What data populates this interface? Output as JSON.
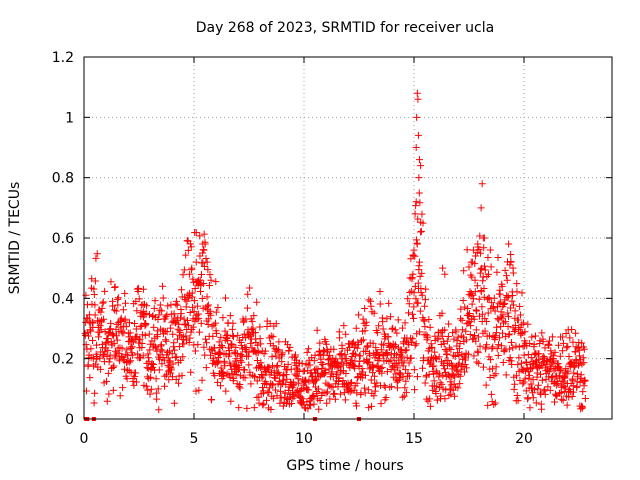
{
  "chart_data": {
    "type": "scatter",
    "title": "Day 268 of 2023, SRMTID for receiver ucla",
    "xlabel": "GPS time / hours",
    "ylabel": "SRMTID / TECUs",
    "xlim": [
      0,
      24
    ],
    "ylim": [
      0,
      1.2
    ],
    "grid": true,
    "marker": "plus",
    "color": "#ff0000",
    "xticks": [
      {
        "value": 0,
        "label": "0"
      },
      {
        "value": 5,
        "label": "5"
      },
      {
        "value": 10,
        "label": "10"
      },
      {
        "value": 15,
        "label": "15"
      },
      {
        "value": 20,
        "label": "20"
      }
    ],
    "yticks": [
      {
        "value": 0,
        "label": "0"
      },
      {
        "value": 0.2,
        "label": "0.2"
      },
      {
        "value": 0.4,
        "label": "0.4"
      },
      {
        "value": 0.6,
        "label": "0.6"
      },
      {
        "value": 0.8,
        "label": "0.8"
      },
      {
        "value": 1.0,
        "label": "1"
      },
      {
        "value": 1.2,
        "label": "1.2"
      }
    ],
    "zero_markers_x": [
      0.1,
      0.15,
      0.45,
      10.5,
      12.5
    ],
    "profile": [
      [
        0.05,
        0.24
      ],
      [
        0.3,
        0.27
      ],
      [
        0.6,
        0.3
      ],
      [
        0.9,
        0.25
      ],
      [
        1.2,
        0.28
      ],
      [
        1.4,
        0.32
      ],
      [
        1.7,
        0.25
      ],
      [
        2.0,
        0.22
      ],
      [
        2.3,
        0.24
      ],
      [
        2.6,
        0.27
      ],
      [
        3.0,
        0.2
      ],
      [
        3.3,
        0.25
      ],
      [
        3.6,
        0.28
      ],
      [
        3.9,
        0.22
      ],
      [
        4.2,
        0.28
      ],
      [
        4.5,
        0.36
      ],
      [
        4.8,
        0.4
      ],
      [
        5.0,
        0.36
      ],
      [
        5.3,
        0.44
      ],
      [
        5.5,
        0.4
      ],
      [
        5.8,
        0.28
      ],
      [
        6.2,
        0.22
      ],
      [
        6.6,
        0.2
      ],
      [
        7.0,
        0.2
      ],
      [
        7.5,
        0.24
      ],
      [
        8.0,
        0.2
      ],
      [
        8.5,
        0.18
      ],
      [
        9.0,
        0.16
      ],
      [
        9.5,
        0.14
      ],
      [
        10.0,
        0.1
      ],
      [
        10.3,
        0.12
      ],
      [
        10.6,
        0.16
      ],
      [
        11.0,
        0.16
      ],
      [
        11.5,
        0.15
      ],
      [
        12.0,
        0.16
      ],
      [
        12.5,
        0.17
      ],
      [
        13.0,
        0.22
      ],
      [
        13.5,
        0.22
      ],
      [
        14.0,
        0.2
      ],
      [
        14.5,
        0.18
      ],
      [
        14.8,
        0.25
      ],
      [
        15.0,
        0.42
      ],
      [
        15.2,
        0.55
      ],
      [
        15.4,
        0.4
      ],
      [
        15.6,
        0.22
      ],
      [
        16.0,
        0.18
      ],
      [
        16.4,
        0.2
      ],
      [
        16.8,
        0.16
      ],
      [
        17.0,
        0.2
      ],
      [
        17.3,
        0.28
      ],
      [
        17.6,
        0.35
      ],
      [
        18.0,
        0.4
      ],
      [
        18.3,
        0.36
      ],
      [
        18.6,
        0.28
      ],
      [
        19.0,
        0.32
      ],
      [
        19.4,
        0.34
      ],
      [
        19.7,
        0.26
      ],
      [
        20.0,
        0.2
      ],
      [
        20.4,
        0.17
      ],
      [
        20.8,
        0.16
      ],
      [
        21.2,
        0.17
      ],
      [
        21.6,
        0.16
      ],
      [
        22.0,
        0.18
      ],
      [
        22.4,
        0.18
      ],
      [
        22.8,
        0.15
      ]
    ],
    "spikes": [
      {
        "x": 15.15,
        "y": 1.08
      },
      {
        "x": 15.18,
        "y": 1.06
      },
      {
        "x": 15.12,
        "y": 1.0
      },
      {
        "x": 15.2,
        "y": 0.94
      },
      {
        "x": 15.1,
        "y": 0.9
      },
      {
        "x": 15.25,
        "y": 0.86
      },
      {
        "x": 15.3,
        "y": 0.84
      },
      {
        "x": 15.22,
        "y": 0.8
      },
      {
        "x": 15.05,
        "y": 0.68
      },
      {
        "x": 15.1,
        "y": 0.72
      },
      {
        "x": 15.3,
        "y": 0.62
      },
      {
        "x": 15.15,
        "y": 0.58
      },
      {
        "x": 15.0,
        "y": 0.56
      },
      {
        "x": 15.25,
        "y": 0.52
      },
      {
        "x": 14.95,
        "y": 0.48
      },
      {
        "x": 18.1,
        "y": 0.78
      },
      {
        "x": 18.05,
        "y": 0.7
      },
      {
        "x": 18.15,
        "y": 0.6
      },
      {
        "x": 17.9,
        "y": 0.58
      },
      {
        "x": 18.2,
        "y": 0.6
      },
      {
        "x": 17.7,
        "y": 0.56
      },
      {
        "x": 17.6,
        "y": 0.52
      },
      {
        "x": 19.3,
        "y": 0.58
      },
      {
        "x": 19.4,
        "y": 0.52
      },
      {
        "x": 19.5,
        "y": 0.5
      },
      {
        "x": 16.3,
        "y": 0.5
      },
      {
        "x": 16.4,
        "y": 0.48
      },
      {
        "x": 5.4,
        "y": 0.58
      },
      {
        "x": 5.45,
        "y": 0.56
      },
      {
        "x": 5.6,
        "y": 0.52
      },
      {
        "x": 4.9,
        "y": 0.5
      },
      {
        "x": 4.8,
        "y": 0.48
      },
      {
        "x": 5.2,
        "y": 0.46
      },
      {
        "x": 5.1,
        "y": 0.52
      },
      {
        "x": 2.7,
        "y": 0.43
      },
      {
        "x": 1.3,
        "y": 0.39
      }
    ]
  }
}
